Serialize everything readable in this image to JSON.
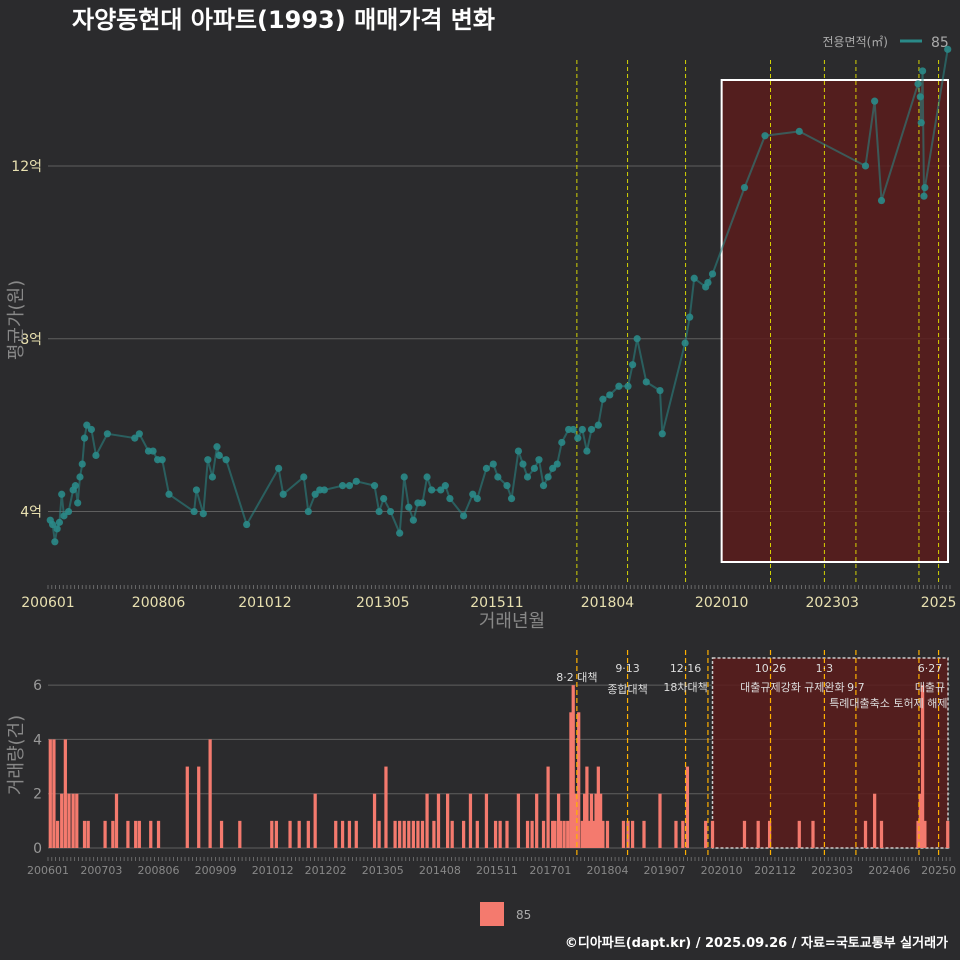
{
  "title": "자양동현대 아파트(1993) 매매가격 변화",
  "footer": "©디아파트(dapt.kr) / 2025.09.26 / 자료=국토교통부 실거래가",
  "legend_top": {
    "label": "전용면적(㎡)",
    "value": "85"
  },
  "legend_bottom": {
    "value": "85"
  },
  "colors": {
    "price": "#2a8a88",
    "volume": "#f47a6e",
    "vline_price": "#e6e600",
    "vline_volume": "#ffb000",
    "highlight_fill": "#5a1c1c",
    "background": "#2b2b2d"
  },
  "chart_data": [
    {
      "type": "line",
      "ylabel": "평균가(원)",
      "xlabel": "거래년월",
      "x_range": [
        2006.0,
        2025.75
      ],
      "y_range": [
        2.3,
        14.8
      ],
      "y_ticks": [
        {
          "v": 4,
          "label": "4억"
        },
        {
          "v": 8,
          "label": "8억"
        },
        {
          "v": 12,
          "label": "12억"
        }
      ],
      "x_ticks": [
        {
          "v": 2006.0,
          "label": "200601"
        },
        {
          "v": 2008.42,
          "label": "200806"
        },
        {
          "v": 2010.75,
          "label": "201012"
        },
        {
          "v": 2013.33,
          "label": "201305"
        },
        {
          "v": 2015.83,
          "label": "201511"
        },
        {
          "v": 2018.25,
          "label": "201804"
        },
        {
          "v": 2020.75,
          "label": "202010"
        },
        {
          "v": 2023.17,
          "label": "202303"
        },
        {
          "v": 2025.5,
          "label": "2025"
        }
      ],
      "event_lines": [
        2017.58,
        2018.69,
        2019.96,
        2021.82,
        2023.0,
        2023.69,
        2025.07,
        2025.5
      ],
      "highlight_range": [
        2020.75,
        2025.75
      ],
      "series": [
        {
          "name": "85",
          "points": [
            [
              2006.05,
              3.8
            ],
            [
              2006.1,
              3.7
            ],
            [
              2006.15,
              3.3
            ],
            [
              2006.2,
              3.6
            ],
            [
              2006.25,
              3.75
            ],
            [
              2006.3,
              4.4
            ],
            [
              2006.35,
              3.9
            ],
            [
              2006.45,
              4.0
            ],
            [
              2006.55,
              4.5
            ],
            [
              2006.6,
              4.6
            ],
            [
              2006.65,
              4.2
            ],
            [
              2006.7,
              4.8
            ],
            [
              2006.75,
              5.1
            ],
            [
              2006.8,
              5.7
            ],
            [
              2006.85,
              6.0
            ],
            [
              2006.95,
              5.9
            ],
            [
              2007.05,
              5.3
            ],
            [
              2007.3,
              5.8
            ],
            [
              2007.9,
              5.7
            ],
            [
              2008.0,
              5.8
            ],
            [
              2008.2,
              5.4
            ],
            [
              2008.3,
              5.4
            ],
            [
              2008.4,
              5.2
            ],
            [
              2008.5,
              5.2
            ],
            [
              2008.65,
              4.4
            ],
            [
              2009.2,
              4.0
            ],
            [
              2009.25,
              4.5
            ],
            [
              2009.4,
              3.95
            ],
            [
              2009.5,
              5.2
            ],
            [
              2009.6,
              4.8
            ],
            [
              2009.7,
              5.5
            ],
            [
              2009.75,
              5.3
            ],
            [
              2009.9,
              5.2
            ],
            [
              2010.35,
              3.7
            ],
            [
              2011.05,
              5.0
            ],
            [
              2011.15,
              4.4
            ],
            [
              2011.6,
              4.8
            ],
            [
              2011.7,
              4.0
            ],
            [
              2011.85,
              4.4
            ],
            [
              2011.95,
              4.5
            ],
            [
              2012.05,
              4.5
            ],
            [
              2012.45,
              4.6
            ],
            [
              2012.6,
              4.6
            ],
            [
              2012.75,
              4.7
            ],
            [
              2013.15,
              4.6
            ],
            [
              2013.25,
              4.0
            ],
            [
              2013.35,
              4.3
            ],
            [
              2013.5,
              4.0
            ],
            [
              2013.7,
              3.5
            ],
            [
              2013.8,
              4.8
            ],
            [
              2013.9,
              4.1
            ],
            [
              2014.0,
              3.8
            ],
            [
              2014.1,
              4.2
            ],
            [
              2014.2,
              4.2
            ],
            [
              2014.3,
              4.8
            ],
            [
              2014.4,
              4.5
            ],
            [
              2014.6,
              4.5
            ],
            [
              2014.7,
              4.6
            ],
            [
              2014.8,
              4.3
            ],
            [
              2015.1,
              3.9
            ],
            [
              2015.3,
              4.4
            ],
            [
              2015.4,
              4.3
            ],
            [
              2015.6,
              5.0
            ],
            [
              2015.75,
              5.1
            ],
            [
              2015.85,
              4.8
            ],
            [
              2016.05,
              4.6
            ],
            [
              2016.15,
              4.3
            ],
            [
              2016.3,
              5.4
            ],
            [
              2016.4,
              5.1
            ],
            [
              2016.5,
              4.8
            ],
            [
              2016.65,
              5.0
            ],
            [
              2016.75,
              5.2
            ],
            [
              2016.85,
              4.6
            ],
            [
              2016.95,
              4.8
            ],
            [
              2017.05,
              5.0
            ],
            [
              2017.15,
              5.1
            ],
            [
              2017.25,
              5.6
            ],
            [
              2017.4,
              5.9
            ],
            [
              2017.5,
              5.9
            ],
            [
              2017.6,
              5.7
            ],
            [
              2017.7,
              5.9
            ],
            [
              2017.8,
              5.4
            ],
            [
              2017.9,
              5.9
            ],
            [
              2018.05,
              6.0
            ],
            [
              2018.15,
              6.6
            ],
            [
              2018.3,
              6.7
            ],
            [
              2018.5,
              6.9
            ],
            [
              2018.7,
              6.9
            ],
            [
              2018.8,
              7.4
            ],
            [
              2018.9,
              8.0
            ],
            [
              2019.1,
              7.0
            ],
            [
              2019.4,
              6.8
            ],
            [
              2019.45,
              5.8
            ],
            [
              2019.95,
              7.9
            ],
            [
              2020.05,
              8.5
            ],
            [
              2020.15,
              9.4
            ],
            [
              2020.4,
              9.2
            ],
            [
              2020.45,
              9.3
            ],
            [
              2020.55,
              9.5
            ],
            [
              2021.25,
              11.5
            ],
            [
              2021.7,
              12.7
            ],
            [
              2022.45,
              12.8
            ],
            [
              2023.9,
              12.0
            ],
            [
              2024.1,
              13.5
            ],
            [
              2024.25,
              11.2
            ],
            [
              2025.05,
              13.9
            ],
            [
              2025.1,
              13.6
            ],
            [
              2025.12,
              13.0
            ],
            [
              2025.15,
              14.2
            ],
            [
              2025.18,
              11.3
            ],
            [
              2025.2,
              11.5
            ],
            [
              2025.7,
              14.7
            ]
          ]
        }
      ]
    },
    {
      "type": "bar",
      "ylabel": "거래량(건)",
      "x_range": [
        2006.0,
        2025.75
      ],
      "y_range": [
        0,
        7
      ],
      "y_ticks": [
        0,
        2,
        4,
        6
      ],
      "x_ticks": [
        {
          "v": 2006.0,
          "label": "200601"
        },
        {
          "v": 2007.17,
          "label": "200703"
        },
        {
          "v": 2008.42,
          "label": "200806"
        },
        {
          "v": 2009.67,
          "label": "200909"
        },
        {
          "v": 2010.92,
          "label": "201012"
        },
        {
          "v": 2012.08,
          "label": "201202"
        },
        {
          "v": 2013.33,
          "label": "201305"
        },
        {
          "v": 2014.58,
          "label": "201408"
        },
        {
          "v": 2015.83,
          "label": "201511"
        },
        {
          "v": 2017.0,
          "label": "201701"
        },
        {
          "v": 2018.25,
          "label": "201804"
        },
        {
          "v": 2019.5,
          "label": "201907"
        },
        {
          "v": 2020.75,
          "label": "202010"
        },
        {
          "v": 2021.92,
          "label": "202112"
        },
        {
          "v": 2023.17,
          "label": "202303"
        },
        {
          "v": 2024.42,
          "label": "202406"
        },
        {
          "v": 2025.5,
          "label": "20250"
        }
      ],
      "event_lines": [
        2017.58,
        2018.69,
        2019.96,
        2020.45,
        2021.82,
        2023.0,
        2023.69,
        2025.07,
        2025.5
      ],
      "highlight_range": [
        2020.55,
        2025.75
      ],
      "annotations": [
        {
          "x": 2017.58,
          "line1": "8·2 대책",
          "line2": ""
        },
        {
          "x": 2018.69,
          "line1": "9·13",
          "line2": "종합대책"
        },
        {
          "x": 2019.96,
          "line1": "12·16",
          "line2": "18차대책"
        },
        {
          "x": 2021.82,
          "line1": "10·26",
          "line2": "대출규제강화"
        },
        {
          "x": 2023.0,
          "line1": "1·3",
          "line2": "규제완화"
        },
        {
          "x": 2023.69,
          "line1": "",
          "line2": "9·7"
        },
        {
          "x": 2025.5,
          "line1": "6·27",
          "line2": "대출규"
        }
      ],
      "annotation_extra": {
        "x": 2024.4,
        "text": "특례대출축소 토허제 해제"
      },
      "series": [
        {
          "name": "85",
          "bars": [
            [
              2006.05,
              4
            ],
            [
              2006.13,
              4
            ],
            [
              2006.21,
              1
            ],
            [
              2006.3,
              2
            ],
            [
              2006.38,
              4
            ],
            [
              2006.46,
              2
            ],
            [
              2006.55,
              2
            ],
            [
              2006.63,
              2
            ],
            [
              2006.8,
              1
            ],
            [
              2006.88,
              1
            ],
            [
              2007.25,
              1
            ],
            [
              2007.42,
              1
            ],
            [
              2007.5,
              2
            ],
            [
              2007.75,
              1
            ],
            [
              2007.92,
              1
            ],
            [
              2008.0,
              1
            ],
            [
              2008.25,
              1
            ],
            [
              2008.42,
              1
            ],
            [
              2009.05,
              3
            ],
            [
              2009.3,
              3
            ],
            [
              2009.55,
              4
            ],
            [
              2009.8,
              1
            ],
            [
              2010.2,
              1
            ],
            [
              2010.9,
              1
            ],
            [
              2011.0,
              1
            ],
            [
              2011.3,
              1
            ],
            [
              2011.5,
              1
            ],
            [
              2011.7,
              1
            ],
            [
              2011.85,
              2
            ],
            [
              2012.3,
              1
            ],
            [
              2012.45,
              1
            ],
            [
              2012.6,
              1
            ],
            [
              2012.75,
              1
            ],
            [
              2013.15,
              2
            ],
            [
              2013.25,
              1
            ],
            [
              2013.4,
              3
            ],
            [
              2013.6,
              1
            ],
            [
              2013.7,
              1
            ],
            [
              2013.8,
              1
            ],
            [
              2013.9,
              1
            ],
            [
              2014.0,
              1
            ],
            [
              2014.1,
              1
            ],
            [
              2014.2,
              1
            ],
            [
              2014.3,
              2
            ],
            [
              2014.45,
              1
            ],
            [
              2014.55,
              2
            ],
            [
              2014.75,
              2
            ],
            [
              2014.85,
              1
            ],
            [
              2015.1,
              1
            ],
            [
              2015.25,
              2
            ],
            [
              2015.4,
              1
            ],
            [
              2015.6,
              2
            ],
            [
              2015.8,
              1
            ],
            [
              2015.9,
              1
            ],
            [
              2016.05,
              1
            ],
            [
              2016.3,
              2
            ],
            [
              2016.5,
              1
            ],
            [
              2016.6,
              1
            ],
            [
              2016.7,
              2
            ],
            [
              2016.85,
              1
            ],
            [
              2016.95,
              3
            ],
            [
              2017.05,
              1
            ],
            [
              2017.1,
              1
            ],
            [
              2017.18,
              2
            ],
            [
              2017.22,
              1
            ],
            [
              2017.3,
              1
            ],
            [
              2017.38,
              1
            ],
            [
              2017.45,
              5
            ],
            [
              2017.5,
              6
            ],
            [
              2017.55,
              2
            ],
            [
              2017.58,
              1
            ],
            [
              2017.62,
              5
            ],
            [
              2017.7,
              1
            ],
            [
              2017.75,
              2
            ],
            [
              2017.8,
              3
            ],
            [
              2017.85,
              1
            ],
            [
              2017.9,
              2
            ],
            [
              2017.95,
              1
            ],
            [
              2018.0,
              2
            ],
            [
              2018.05,
              3
            ],
            [
              2018.1,
              2
            ],
            [
              2018.15,
              1
            ],
            [
              2018.25,
              1
            ],
            [
              2018.6,
              1
            ],
            [
              2018.7,
              1
            ],
            [
              2018.8,
              1
            ],
            [
              2019.05,
              1
            ],
            [
              2019.4,
              2
            ],
            [
              2019.75,
              1
            ],
            [
              2019.9,
              1
            ],
            [
              2020.0,
              3
            ],
            [
              2020.4,
              1
            ],
            [
              2020.55,
              1
            ],
            [
              2021.25,
              1
            ],
            [
              2021.55,
              1
            ],
            [
              2021.8,
              1
            ],
            [
              2022.45,
              1
            ],
            [
              2022.75,
              1
            ],
            [
              2023.9,
              1
            ],
            [
              2024.1,
              2
            ],
            [
              2024.25,
              1
            ],
            [
              2025.05,
              1
            ],
            [
              2025.1,
              2
            ],
            [
              2025.15,
              6
            ],
            [
              2025.2,
              1
            ],
            [
              2025.7,
              1
            ]
          ]
        }
      ]
    }
  ]
}
